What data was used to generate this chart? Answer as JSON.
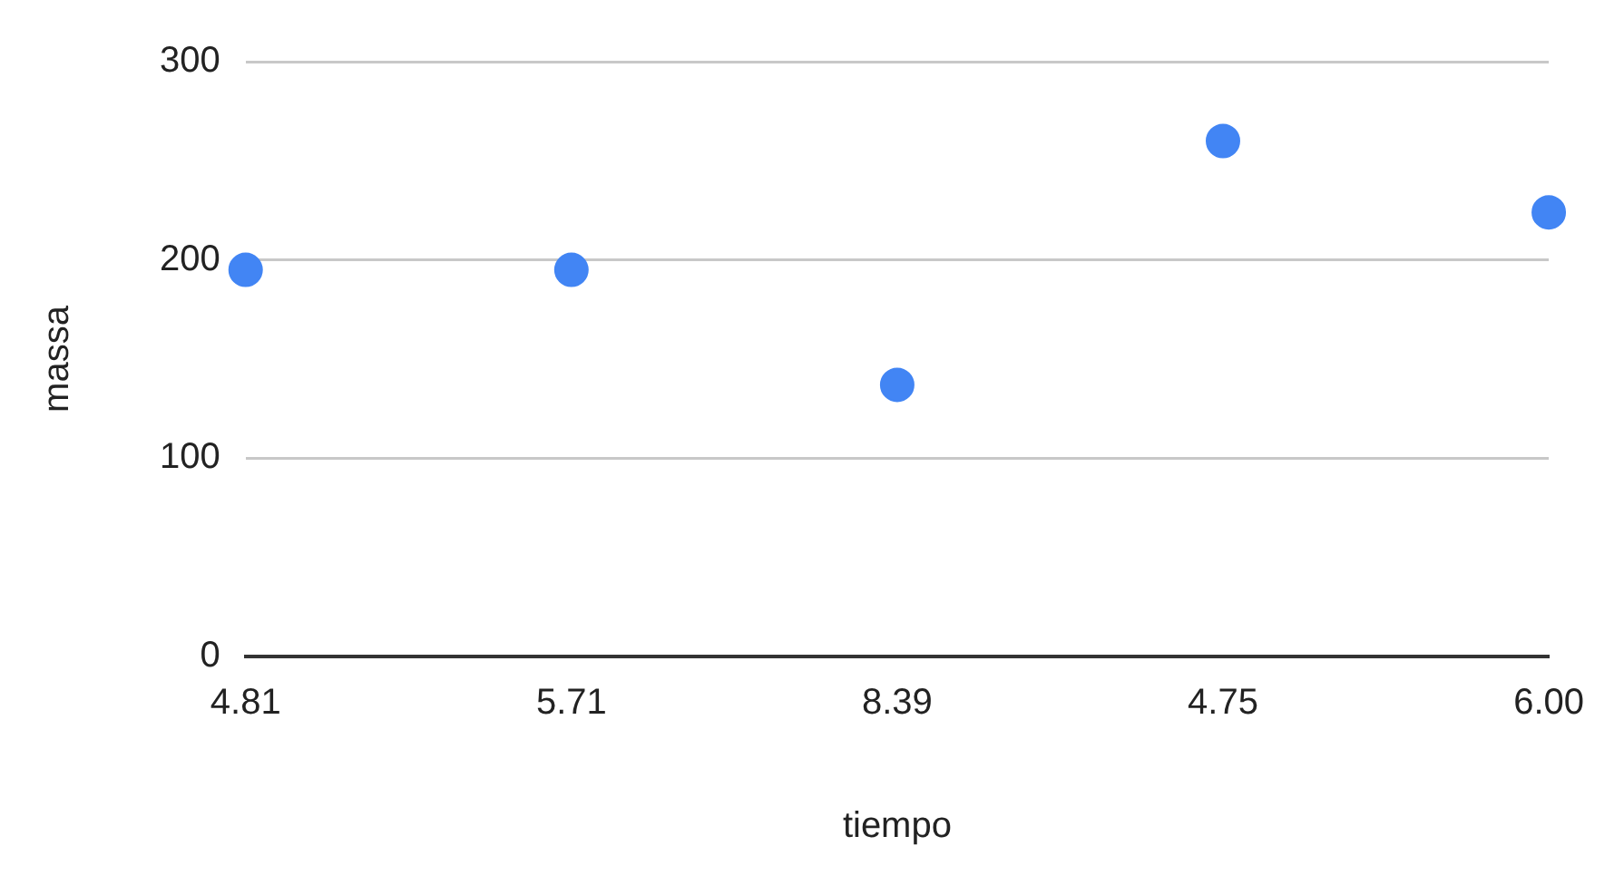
{
  "chart_data": {
    "type": "scatter",
    "xlabel": "tiempo",
    "ylabel": "massa",
    "categories": [
      "4.81",
      "5.71",
      "8.39",
      "4.75",
      "6.00"
    ],
    "series": [
      {
        "color": "#4285f4",
        "values": [
          195,
          195,
          137,
          260,
          224
        ]
      }
    ],
    "ylim": [
      0,
      300
    ],
    "yticks": [
      0,
      100,
      200,
      300
    ],
    "grid": "y",
    "legend": false,
    "marker": "circle"
  }
}
